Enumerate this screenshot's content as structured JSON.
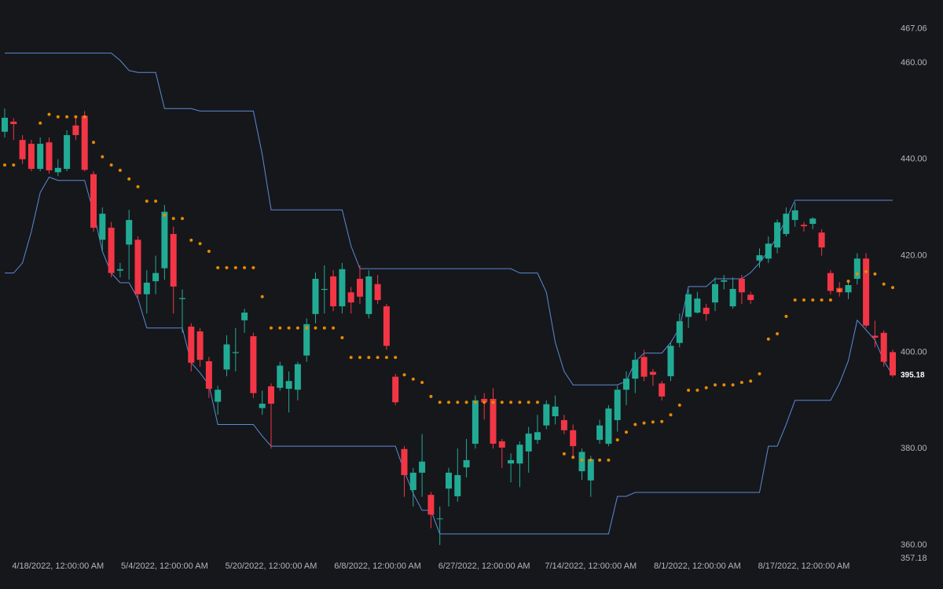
{
  "chart_data": {
    "type": "candlestick",
    "categories": [
      null,
      null,
      null,
      null,
      null,
      null,
      "4/18/2022, 12:00:00 AM",
      null,
      null,
      null,
      null,
      null,
      null,
      null,
      null,
      null,
      null,
      null,
      "5/4/2022, 12:00:00 AM",
      null,
      null,
      null,
      null,
      null,
      null,
      null,
      null,
      null,
      null,
      null,
      "5/20/2022, 12:00:00 AM",
      null,
      null,
      null,
      null,
      null,
      null,
      null,
      null,
      null,
      null,
      null,
      "6/8/2022, 12:00:00 AM",
      null,
      null,
      null,
      null,
      null,
      null,
      null,
      null,
      null,
      null,
      null,
      "6/27/2022, 12:00:00 AM",
      null,
      null,
      null,
      null,
      null,
      null,
      null,
      null,
      null,
      null,
      null,
      "7/14/2022, 12:00:00 AM",
      null,
      null,
      null,
      null,
      null,
      null,
      null,
      null,
      null,
      null,
      null,
      "8/1/2022, 12:00:00 AM",
      null,
      null,
      null,
      null,
      null,
      null,
      null,
      null,
      null,
      null,
      null,
      "8/17/2022, 12:00:00 AM",
      null,
      null,
      null,
      null,
      null,
      null,
      null,
      null,
      null,
      null
    ],
    "open": [
      445.7,
      447.8,
      444,
      443.2,
      438,
      443.5,
      437.3,
      438,
      447,
      449,
      436.9,
      423.3,
      425.8,
      416.9,
      422.3,
      423.3,
      412,
      414.7,
      417.4,
      424.5,
      411,
      405.3,
      404.3,
      398.1,
      389.7,
      396.4,
      399.8,
      406.6,
      403.3,
      388.4,
      392.9,
      392.6,
      392.4,
      392.2,
      399.3,
      407.9,
      412.9,
      415.7,
      409.5,
      412.4,
      415.2,
      407.9,
      414.1,
      409.5,
      394.9,
      379.9,
      371.4,
      375,
      370.4,
      365.4,
      371.7,
      370.1,
      376.1,
      381,
      390.3,
      390.3,
      381.5,
      376.9,
      376.9,
      379.4,
      381.8,
      384.8,
      386.7,
      385.9,
      383.8,
      375.3,
      373.4,
      381.8,
      381,
      385.9,
      392.2,
      394.5,
      399,
      395.9,
      393.5,
      395,
      401.9,
      407.3,
      408.2,
      409.2,
      410.3,
      414.6,
      409.5,
      415.2,
      411.9,
      419,
      419.4,
      421.7,
      424.5,
      427.4,
      426.4,
      426.6,
      424.8,
      416.4,
      413.3,
      412.4,
      415.2,
      419.4,
      403.4,
      404,
      400
    ],
    "high": [
      450.5,
      448.5,
      445,
      444,
      444.5,
      444.5,
      440,
      446,
      449,
      450,
      437.5,
      430,
      427,
      418.5,
      429.5,
      424,
      417,
      420,
      430.5,
      426,
      413,
      406,
      405,
      399,
      393,
      403.5,
      405,
      409,
      404,
      392,
      393.5,
      398,
      396,
      398,
      407,
      416.5,
      418,
      417,
      418.5,
      413.5,
      418,
      417,
      416,
      410,
      395.5,
      380.5,
      376,
      383,
      371,
      368,
      376,
      380,
      382,
      391,
      391.5,
      392.5,
      382,
      379,
      381.5,
      384.5,
      387,
      390,
      391,
      387,
      385,
      380,
      378.5,
      386,
      389,
      393,
      396,
      400,
      400.5,
      396.5,
      394,
      402,
      408,
      413,
      412.5,
      410,
      415.5,
      416,
      415.5,
      416,
      412.5,
      421.5,
      424,
      427.5,
      430,
      431,
      427,
      428,
      425.5,
      417,
      414.5,
      415,
      420.5,
      420.5,
      406.5,
      404.5,
      400.5
    ],
    "low": [
      444.5,
      444,
      439,
      437.5,
      437.5,
      437,
      436.5,
      437.5,
      444,
      437.5,
      425,
      421,
      415.5,
      415.5,
      415,
      411,
      408,
      412,
      415,
      408,
      404,
      396,
      397,
      390.5,
      387,
      395,
      396,
      404,
      390.5,
      387,
      380,
      392,
      387.5,
      390,
      398,
      406,
      408,
      408.5,
      408,
      408,
      410,
      407,
      410,
      400.5,
      389,
      370,
      368,
      370,
      363.5,
      360,
      368,
      369,
      374,
      380,
      386,
      380,
      376,
      373,
      372,
      375,
      381,
      384,
      385,
      383,
      378,
      373.5,
      370,
      381,
      380.5,
      383.5,
      389,
      391.5,
      394,
      393,
      390,
      394,
      401,
      405,
      408,
      406.5,
      408.5,
      413,
      409,
      410,
      410,
      417.5,
      418.5,
      420.5,
      424,
      426,
      425,
      425.5,
      420,
      412,
      411.5,
      411,
      414,
      405,
      401,
      397,
      394.8
    ],
    "close": [
      448.6,
      447.3,
      440,
      438,
      443.2,
      437.7,
      438.2,
      445,
      445,
      437.8,
      425.8,
      428.7,
      416.4,
      417.2,
      427.4,
      412,
      414.4,
      416.4,
      429.1,
      413.6,
      411.2,
      397.8,
      398.4,
      392.4,
      392.2,
      401.6,
      400,
      408.2,
      391.5,
      389.3,
      389.3,
      397.2,
      394,
      397.5,
      405.8,
      415.2,
      413.1,
      409.5,
      417.2,
      410.3,
      411.5,
      415.7,
      410.8,
      401.3,
      389.6,
      374.5,
      375,
      377.3,
      366.3,
      365.5,
      375,
      374.5,
      377.6,
      390,
      389.6,
      381,
      380.2,
      377.6,
      380.8,
      383.1,
      383.4,
      389.2,
      388.7,
      383.8,
      380.5,
      379.3,
      377.8,
      384.8,
      388.3,
      392.2,
      394.5,
      398.4,
      394.9,
      395.3,
      390.8,
      401.3,
      406.4,
      412,
      411.1,
      407.9,
      414.1,
      414.9,
      413.1,
      412.4,
      410.8,
      420.1,
      422.5,
      426.9,
      428.7,
      429.4,
      426.1,
      427.7,
      421.7,
      412.7,
      412.4,
      413.9,
      419.4,
      405.5,
      403,
      398,
      395.18
    ],
    "up_color": "#22ab94",
    "down_color": "#f23645",
    "channel_upper": [
      462,
      462,
      462,
      462,
      462,
      462,
      462,
      462,
      462,
      462,
      462,
      462,
      462,
      460.5,
      458.4,
      458,
      458,
      458,
      450.5,
      450.5,
      450.5,
      450.5,
      450,
      450,
      450,
      450,
      450,
      450,
      450,
      441,
      429.5,
      429.5,
      429.5,
      429.5,
      429.5,
      429.5,
      429.5,
      429.5,
      429.5,
      422,
      417.3,
      417.3,
      417.3,
      417.3,
      417.3,
      417.3,
      417.3,
      417.3,
      417.3,
      417.3,
      417.3,
      417.3,
      417.3,
      417.3,
      417.3,
      417.3,
      417.3,
      417.3,
      416.4,
      416.4,
      416.4,
      412.4,
      402,
      396,
      393.2,
      393.2,
      393.2,
      393.2,
      393.2,
      393.2,
      394,
      398,
      399.8,
      399.8,
      399.8,
      402,
      405,
      413.6,
      413.6,
      413.6,
      415.2,
      415.2,
      415.2,
      415.2,
      416.5,
      418.5,
      421,
      424,
      427.5,
      431.5,
      431.5,
      431.5,
      431.5,
      431.5,
      431.5,
      431.5,
      431.5,
      431.5,
      431.5,
      431.5,
      431.5
    ],
    "channel_lower": [
      416.4,
      416.4,
      418.5,
      425,
      433.1,
      436.3,
      435.6,
      435.6,
      435.6,
      435.6,
      429,
      420.9,
      416.4,
      414.4,
      414.4,
      411.1,
      405,
      405,
      405,
      405,
      405,
      397.8,
      395.7,
      393.2,
      385,
      385,
      385,
      385,
      385,
      382.6,
      380.5,
      380.5,
      380.5,
      380.5,
      380.5,
      380.5,
      380.5,
      380.5,
      380.5,
      380.5,
      380.5,
      380.5,
      380.5,
      380.5,
      380.5,
      375.3,
      370.7,
      367.2,
      367.2,
      362.3,
      362.3,
      362.3,
      362.3,
      362.3,
      362.3,
      362.3,
      362.3,
      362.3,
      362.3,
      362.3,
      362.3,
      362.3,
      362.3,
      362.3,
      362.3,
      362.3,
      362.3,
      362.3,
      362.3,
      370.1,
      370.1,
      370.9,
      370.9,
      370.9,
      370.9,
      370.9,
      370.9,
      370.9,
      370.9,
      370.9,
      370.9,
      370.9,
      370.9,
      370.9,
      370.9,
      370.9,
      380.5,
      380.5,
      385,
      390,
      390,
      390,
      390,
      390,
      393.5,
      398.2,
      406.6,
      404.6,
      402.5,
      398.2,
      395.2
    ],
    "channel_color": "#5b8ad6",
    "sar": [
      438.8,
      438.8,
      null,
      null,
      447.5,
      449.3,
      448.8,
      448.8,
      448.8,
      448.8,
      443.5,
      440.5,
      438.8,
      437.7,
      435.9,
      434.3,
      431.3,
      431.3,
      428.4,
      427.7,
      427.7,
      423.2,
      422.5,
      420.9,
      417.5,
      417.5,
      417.5,
      417.5,
      417.5,
      411.5,
      405,
      405,
      405,
      405,
      405,
      405,
      405,
      405,
      403,
      398.9,
      398.9,
      398.9,
      398.9,
      398.9,
      398.9,
      395.3,
      394.4,
      393.7,
      390.8,
      389.6,
      389.6,
      389.6,
      389.6,
      389.6,
      389.6,
      389.6,
      389.6,
      389.6,
      389.6,
      389.6,
      389.6,
      null,
      null,
      378.9,
      378.2,
      377.6,
      377.6,
      377.6,
      377.6,
      381.8,
      383.4,
      385,
      385.3,
      385.5,
      385.6,
      387,
      389,
      392.1,
      392.1,
      392.6,
      393.2,
      393.2,
      393.2,
      393.7,
      394,
      395.5,
      402.7,
      403.8,
      407.4,
      410.8,
      410.8,
      410.8,
      410.8,
      410.8,
      412.8,
      414.7,
      416.2,
      416.7,
      416.2,
      414.1,
      413.4
    ],
    "sar_color": "#e68a00",
    "ylim": [
      357.18,
      467.06
    ],
    "yticks": [
      {
        "value": 467.06,
        "label": "467.06"
      },
      {
        "value": 460,
        "label": "460.00"
      },
      {
        "value": 440,
        "label": "440.00"
      },
      {
        "value": 420,
        "label": "420.00"
      },
      {
        "value": 400,
        "label": "400.00"
      },
      {
        "value": 380,
        "label": "380.00"
      },
      {
        "value": 360,
        "label": "360.00"
      },
      {
        "value": 357.18,
        "label": "357.18"
      }
    ],
    "grid": false
  }
}
